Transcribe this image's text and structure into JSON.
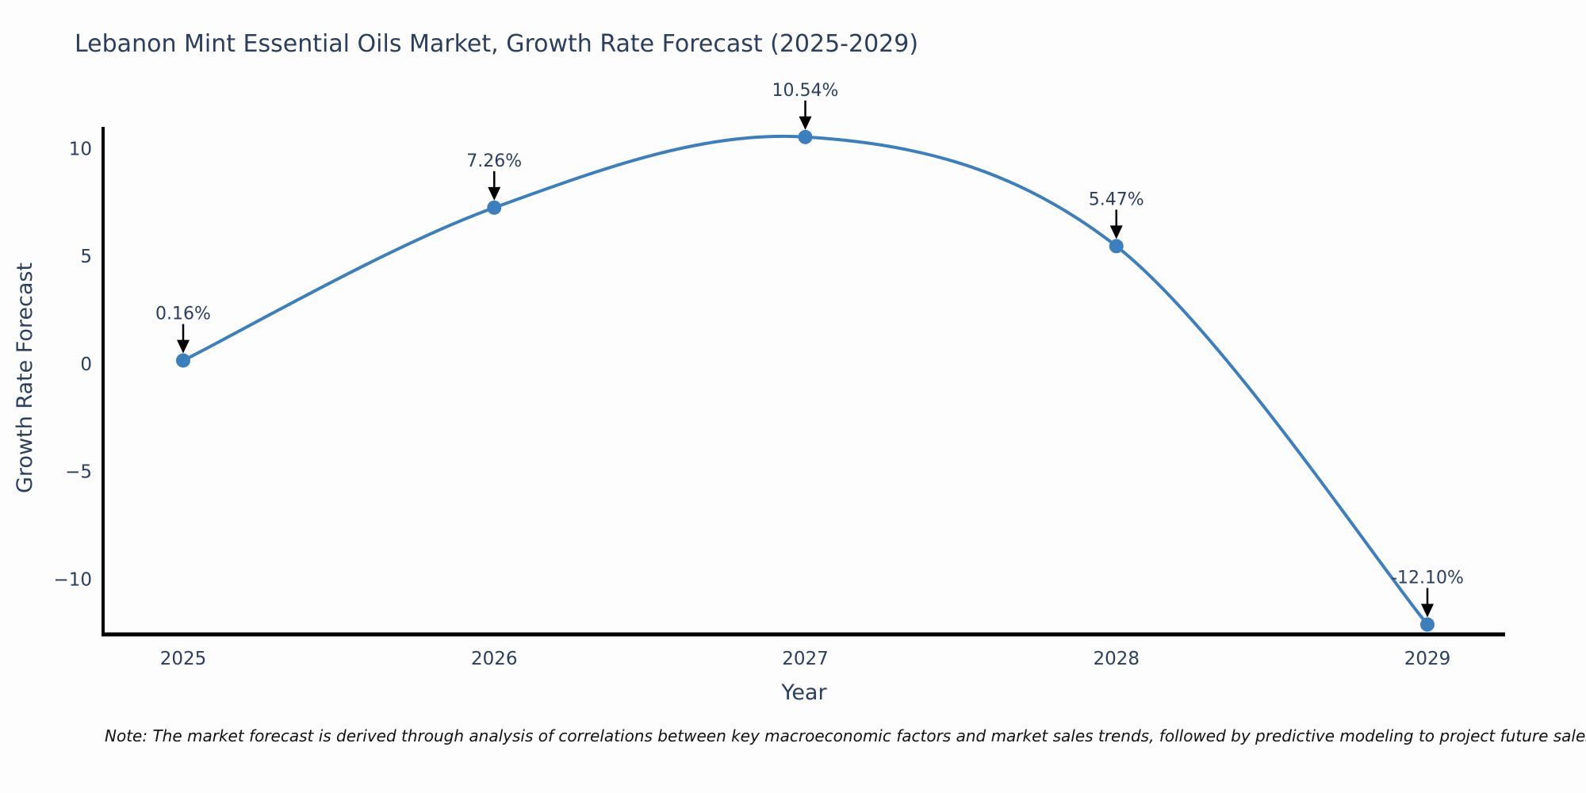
{
  "page": {
    "note": "Note: The market forecast is derived through analysis of correlations between key macroeconomic factors and market sales trends, followed by predictive modeling to project future sales"
  },
  "chart_data": {
    "type": "line",
    "title": "Lebanon Mint Essential Oils Market, Growth Rate Forecast (2025-2029)",
    "xlabel": "Year",
    "ylabel": "Growth Rate Forecast",
    "categories": [
      "2025",
      "2026",
      "2027",
      "2028",
      "2029"
    ],
    "values": [
      0.16,
      7.26,
      10.54,
      5.47,
      -12.1
    ],
    "point_labels": [
      "0.16%",
      "7.26%",
      "10.54%",
      "5.47%",
      "-12.10%"
    ],
    "yticks": [
      10,
      5,
      0,
      -5,
      -10
    ],
    "ytick_labels": [
      "10",
      "5",
      "0",
      "−5",
      "−10"
    ],
    "ylim": [
      -12.56,
      11.01
    ],
    "line_shape": "spline",
    "grid": false,
    "legend": "none",
    "colors": {
      "line": "#3c7fbe",
      "marker": "#3c7fbe",
      "axis": "#000000",
      "text": "#2a3f5f",
      "annotation_arrow": "#000000"
    }
  }
}
